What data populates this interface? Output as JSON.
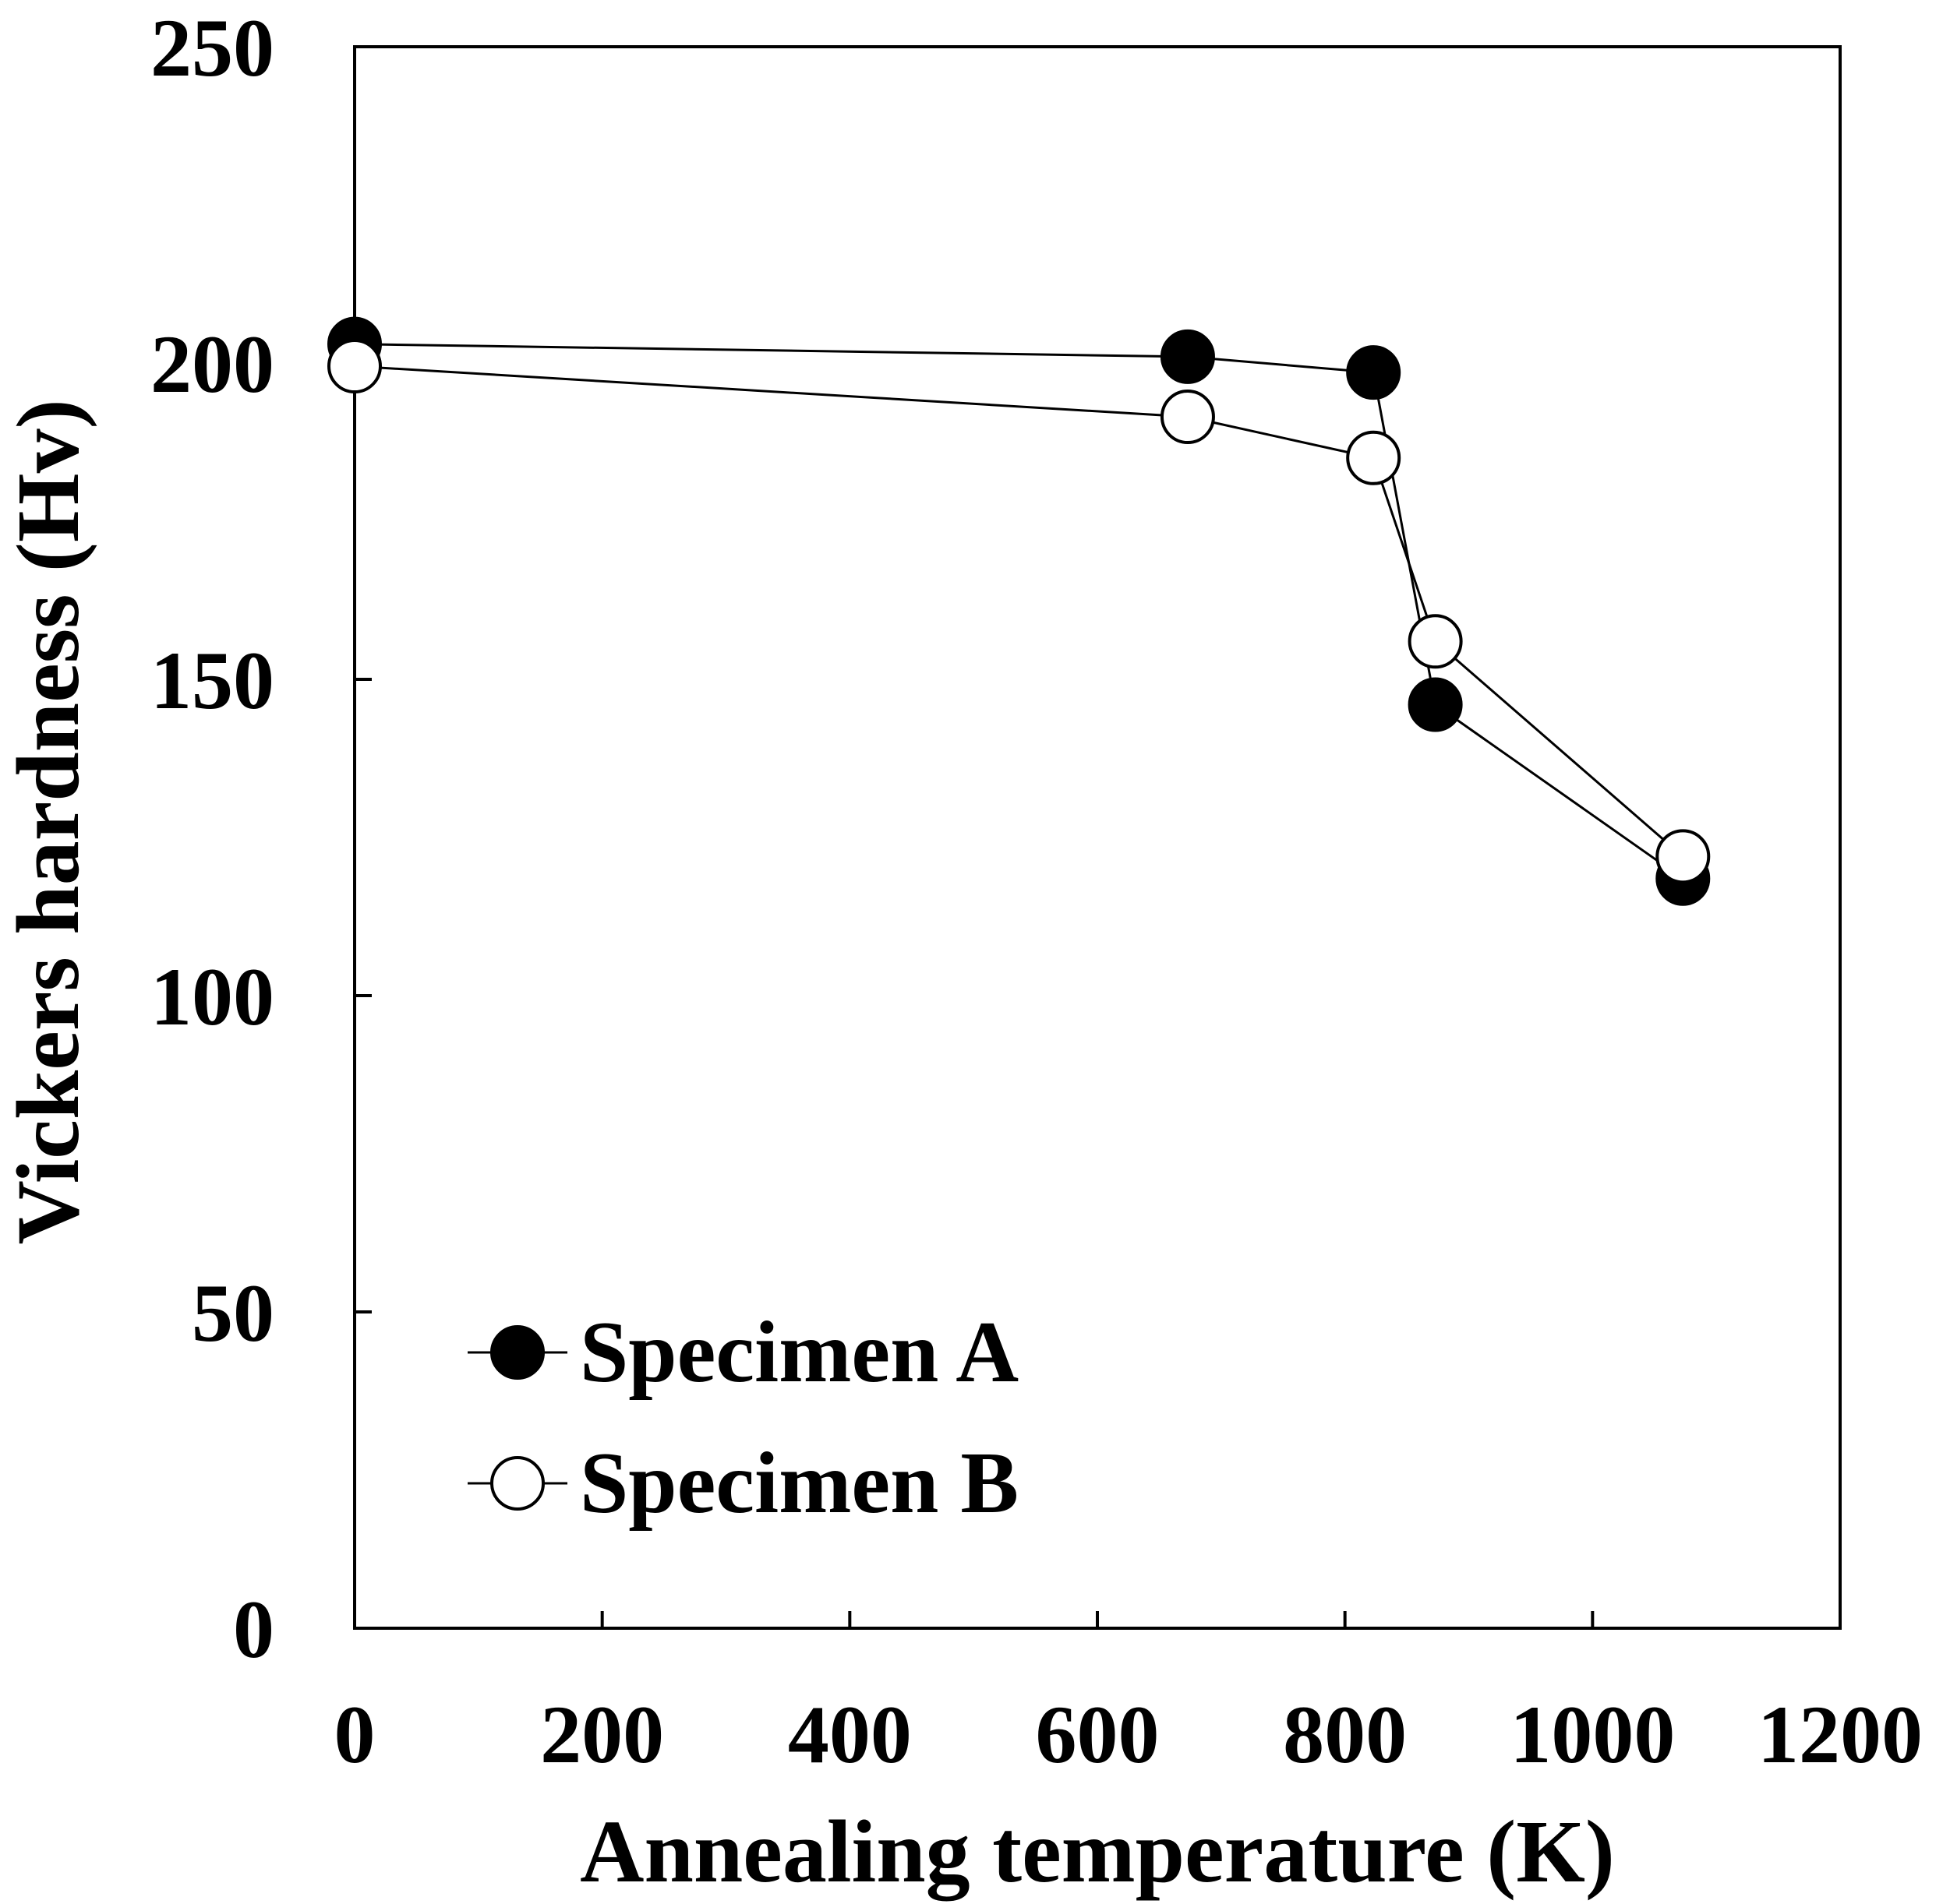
{
  "chart_data": {
    "type": "line",
    "title": "",
    "xlabel": "Annealing temperature (K)",
    "ylabel": "Vickers hardness (Hv)",
    "xlim": [
      0,
      1200
    ],
    "ylim": [
      0,
      250
    ],
    "xticks": [
      0,
      200,
      400,
      600,
      800,
      1000,
      1200
    ],
    "yticks": [
      0,
      50,
      100,
      150,
      200,
      250
    ],
    "xtick_labels": [
      "0",
      "200",
      "400",
      "600",
      "800",
      "1000",
      "1200"
    ],
    "ytick_labels": [
      "0",
      "50",
      "100",
      "150",
      "200",
      "250"
    ],
    "grid": false,
    "legend_position": "bottom-left",
    "series": [
      {
        "name": "Specimen A",
        "marker": "filled-circle",
        "color": "#000000",
        "x": [
          0,
          673,
          823,
          873,
          1073
        ],
        "y": [
          203,
          201,
          198.5,
          146,
          118.5
        ]
      },
      {
        "name": "Specimen B",
        "marker": "open-circle",
        "color": "#000000",
        "x": [
          0,
          673,
          823,
          873,
          1073
        ],
        "y": [
          199.5,
          191.5,
          185,
          156,
          122
        ]
      }
    ]
  }
}
